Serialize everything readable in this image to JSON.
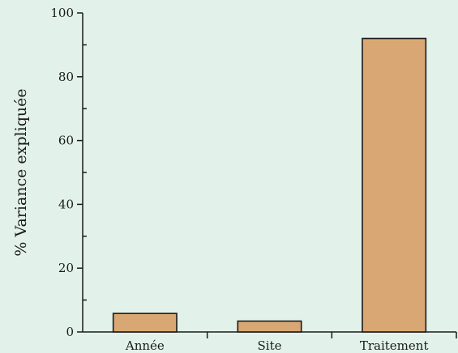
{
  "chart_data": {
    "type": "bar",
    "categories": [
      "Année",
      "Site",
      "Traitement"
    ],
    "values": [
      5.8,
      3.4,
      92.0
    ],
    "title": "",
    "xlabel": "",
    "ylabel": "% Variance expliquée",
    "ylim": [
      0,
      100
    ],
    "yticks": [
      0,
      20,
      40,
      60,
      80,
      100
    ],
    "y_minor_step": 10,
    "grid": false,
    "legend": "none"
  },
  "colors": {
    "background": "#e2f2ea",
    "bar_fill": "#d9a773",
    "bar_stroke": "#1a1a1a",
    "axis": "#1a1a1a"
  }
}
